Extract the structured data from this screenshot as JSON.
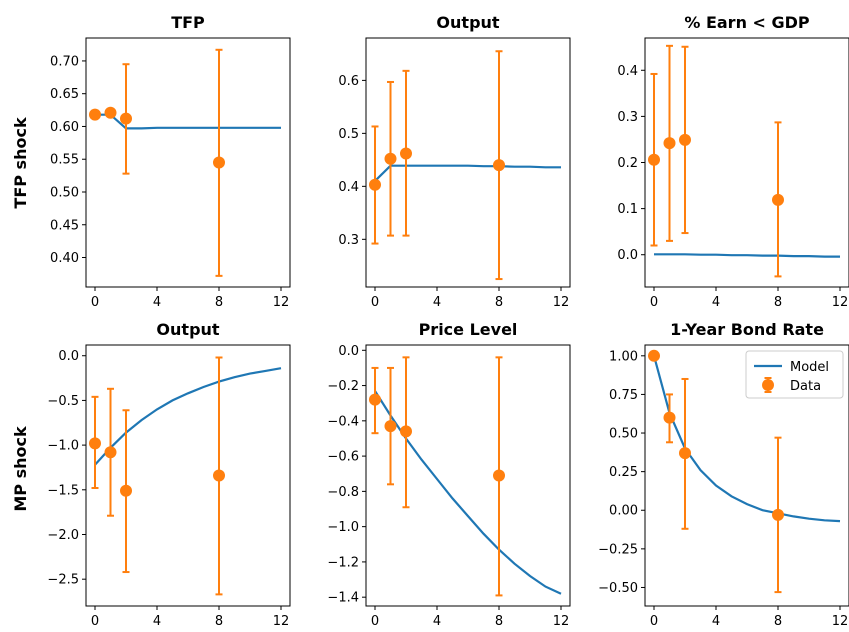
{
  "row_labels": [
    "TFP shock",
    "MP shock"
  ],
  "legend": {
    "model_label": "Model",
    "data_label": "Data"
  },
  "colors": {
    "model": "#1f77b4",
    "data": "#ff7f0e"
  },
  "chart_data": [
    {
      "type": "line",
      "title": "TFP",
      "xlim": [
        0,
        12
      ],
      "ylim": [
        0.355,
        0.735
      ],
      "xticks": [
        0,
        4,
        8,
        12
      ],
      "xtick_labels": [
        "0",
        "4",
        "8",
        "12"
      ],
      "yticks": [
        0.4,
        0.45,
        0.5,
        0.55,
        0.6,
        0.65,
        0.7
      ],
      "ytick_labels": [
        "0.40",
        "0.45",
        "0.50",
        "0.55",
        "0.60",
        "0.65",
        "0.70"
      ],
      "model": {
        "name": "Model",
        "x": [
          0,
          1,
          2,
          3,
          4,
          5,
          6,
          7,
          8,
          9,
          10,
          11,
          12
        ],
        "y": [
          0.618,
          0.618,
          0.597,
          0.597,
          0.598,
          0.598,
          0.598,
          0.598,
          0.598,
          0.598,
          0.598,
          0.598,
          0.598
        ]
      },
      "data": {
        "name": "Data",
        "x": [
          0,
          1,
          2,
          8
        ],
        "y": [
          0.618,
          0.621,
          0.612,
          0.545
        ],
        "lo": [
          0.618,
          0.621,
          0.528,
          0.372
        ],
        "hi": [
          0.618,
          0.621,
          0.695,
          0.717
        ]
      }
    },
    {
      "type": "line",
      "title": "Output",
      "xlim": [
        0,
        12
      ],
      "ylim": [
        0.21,
        0.68
      ],
      "xticks": [
        0,
        4,
        8,
        12
      ],
      "xtick_labels": [
        "0",
        "4",
        "8",
        "12"
      ],
      "yticks": [
        0.3,
        0.4,
        0.5,
        0.6
      ],
      "ytick_labels": [
        "0.3",
        "0.4",
        "0.5",
        "0.6"
      ],
      "model": {
        "name": "Model",
        "x": [
          0,
          1,
          2,
          3,
          4,
          5,
          6,
          7,
          8,
          9,
          10,
          11,
          12
        ],
        "y": [
          0.41,
          0.439,
          0.439,
          0.439,
          0.439,
          0.439,
          0.439,
          0.438,
          0.438,
          0.437,
          0.437,
          0.436,
          0.436
        ]
      },
      "data": {
        "name": "Data",
        "x": [
          0,
          1,
          2,
          8
        ],
        "y": [
          0.403,
          0.452,
          0.462,
          0.44
        ],
        "lo": [
          0.292,
          0.307,
          0.307,
          0.225
        ],
        "hi": [
          0.513,
          0.597,
          0.618,
          0.655
        ]
      }
    },
    {
      "type": "line",
      "title": "% Earn < GDP",
      "xlim": [
        0,
        12
      ],
      "ylim": [
        -0.07,
        0.47
      ],
      "xticks": [
        0,
        4,
        8,
        12
      ],
      "xtick_labels": [
        "0",
        "4",
        "8",
        "12"
      ],
      "yticks": [
        0.0,
        0.1,
        0.2,
        0.3,
        0.4
      ],
      "ytick_labels": [
        "0.0",
        "0.1",
        "0.2",
        "0.3",
        "0.4"
      ],
      "model": {
        "name": "Model",
        "x": [
          0,
          1,
          2,
          3,
          4,
          5,
          6,
          7,
          8,
          9,
          10,
          11,
          12
        ],
        "y": [
          0.001,
          0.001,
          0.001,
          0.0,
          0.0,
          -0.001,
          -0.001,
          -0.002,
          -0.002,
          -0.003,
          -0.003,
          -0.004,
          -0.004
        ]
      },
      "data": {
        "name": "Data",
        "x": [
          0,
          1,
          2,
          8
        ],
        "y": [
          0.206,
          0.242,
          0.249,
          0.119
        ],
        "lo": [
          0.02,
          0.03,
          0.047,
          -0.047
        ],
        "hi": [
          0.392,
          0.453,
          0.451,
          0.287
        ]
      }
    },
    {
      "type": "line",
      "title": "Output",
      "xlim": [
        0,
        12
      ],
      "ylim": [
        -2.8,
        0.12
      ],
      "xticks": [
        0,
        4,
        8,
        12
      ],
      "xtick_labels": [
        "0",
        "4",
        "8",
        "12"
      ],
      "yticks": [
        0.0,
        -0.5,
        -1.0,
        -1.5,
        -2.0,
        -2.5
      ],
      "ytick_labels": [
        "0.0",
        "−0.5",
        "−1.0",
        "−1.5",
        "−2.0",
        "−2.5"
      ],
      "model": {
        "name": "Model",
        "x": [
          0,
          1,
          2,
          3,
          4,
          5,
          6,
          7,
          8,
          9,
          10,
          11,
          12
        ],
        "y": [
          -1.22,
          -1.03,
          -0.86,
          -0.72,
          -0.6,
          -0.5,
          -0.42,
          -0.35,
          -0.29,
          -0.24,
          -0.2,
          -0.17,
          -0.14
        ]
      },
      "data": {
        "name": "Data",
        "x": [
          0,
          1,
          2,
          8
        ],
        "y": [
          -0.98,
          -1.08,
          -1.51,
          -1.34
        ],
        "lo": [
          -1.48,
          -1.79,
          -2.42,
          -2.67
        ],
        "hi": [
          -0.46,
          -0.37,
          -0.61,
          -0.02
        ]
      }
    },
    {
      "type": "line",
      "title": "Price Level",
      "xlim": [
        0,
        12
      ],
      "ylim": [
        -1.45,
        0.03
      ],
      "xticks": [
        0,
        4,
        8,
        12
      ],
      "xtick_labels": [
        "0",
        "4",
        "8",
        "12"
      ],
      "yticks": [
        0.0,
        -0.2,
        -0.4,
        -0.6,
        -0.8,
        -1.0,
        -1.2,
        -1.4
      ],
      "ytick_labels": [
        "0.0",
        "−0.2",
        "−0.4",
        "−0.6",
        "−0.8",
        "−1.0",
        "−1.2",
        "−1.4"
      ],
      "model": {
        "name": "Model",
        "x": [
          0,
          1,
          2,
          3,
          4,
          5,
          6,
          7,
          8,
          9,
          10,
          11,
          12
        ],
        "y": [
          -0.23,
          -0.37,
          -0.5,
          -0.62,
          -0.73,
          -0.84,
          -0.94,
          -1.04,
          -1.13,
          -1.21,
          -1.28,
          -1.34,
          -1.38
        ]
      },
      "data": {
        "name": "Data",
        "x": [
          0,
          1,
          2,
          8
        ],
        "y": [
          -0.28,
          -0.43,
          -0.46,
          -0.71
        ],
        "lo": [
          -0.47,
          -0.76,
          -0.89,
          -1.39
        ],
        "hi": [
          -0.1,
          -0.1,
          -0.04,
          -0.04
        ]
      }
    },
    {
      "type": "line",
      "title": "1-Year Bond Rate",
      "xlim": [
        0,
        12
      ],
      "ylim": [
        -0.62,
        1.07
      ],
      "xticks": [
        0,
        4,
        8,
        12
      ],
      "xtick_labels": [
        "0",
        "4",
        "8",
        "12"
      ],
      "yticks": [
        1.0,
        0.75,
        0.5,
        0.25,
        0.0,
        -0.25,
        -0.5
      ],
      "ytick_labels": [
        "1.00",
        "0.75",
        "0.50",
        "0.25",
        "0.00",
        "−0.25",
        "−0.50"
      ],
      "legend_position": "top-right",
      "model": {
        "name": "Model",
        "x": [
          0,
          1,
          2,
          3,
          4,
          5,
          6,
          7,
          8,
          9,
          10,
          11,
          12
        ],
        "y": [
          1.0,
          0.63,
          0.4,
          0.26,
          0.16,
          0.09,
          0.04,
          0.0,
          -0.02,
          -0.04,
          -0.055,
          -0.065,
          -0.07
        ]
      },
      "data": {
        "name": "Data",
        "x": [
          0,
          1,
          2,
          8
        ],
        "y": [
          1.0,
          0.6,
          0.37,
          -0.03
        ],
        "lo": [
          1.0,
          0.44,
          -0.12,
          -0.53
        ],
        "hi": [
          1.0,
          0.75,
          0.85,
          0.47
        ]
      }
    }
  ]
}
